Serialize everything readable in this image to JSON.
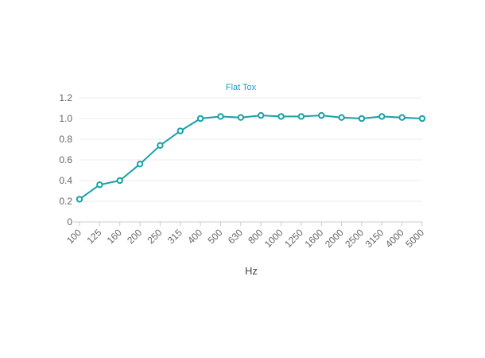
{
  "chart_data": {
    "type": "line",
    "title": "Flat Tox",
    "xlabel": "Hz",
    "ylabel": "",
    "categories": [
      "100",
      "125",
      "160",
      "200",
      "250",
      "315",
      "400",
      "500",
      "630",
      "800",
      "1000",
      "1250",
      "1600",
      "2000",
      "2500",
      "3150",
      "4000",
      "5000"
    ],
    "series": [
      {
        "values": [
          0.22,
          0.36,
          0.4,
          0.56,
          0.74,
          0.88,
          1.0,
          1.02,
          1.01,
          1.03,
          1.02,
          1.02,
          1.03,
          1.01,
          1.0,
          1.02,
          1.01,
          1.0
        ]
      }
    ],
    "yticks": [
      "0",
      "0.2",
      "0.4",
      "0.6",
      "0.8",
      "1.0",
      "1.2"
    ],
    "ylim": [
      0,
      1.2
    ],
    "grid": true,
    "legend": "none",
    "colors": {
      "line": "#17A2A5",
      "title": "#1a9fc4",
      "grid": "#eeeeee",
      "axis": "#cccccc"
    }
  }
}
